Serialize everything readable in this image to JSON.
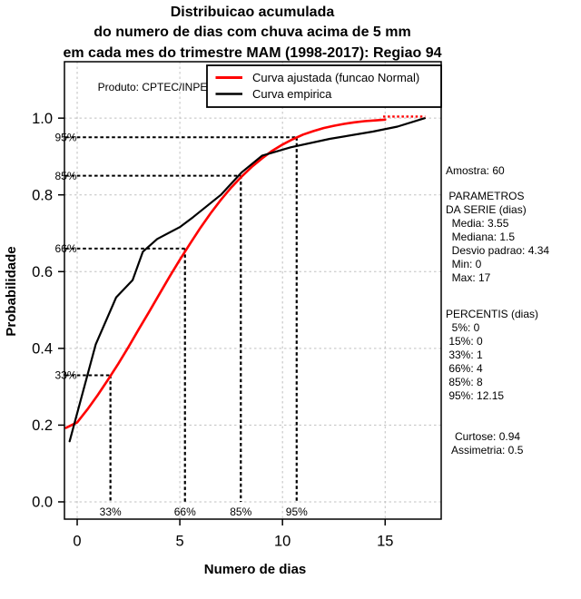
{
  "title": {
    "line1": "Distribuicao acumulada",
    "line2": "do numero de dias com chuva acima de 5 mm",
    "line3": "em cada mes do trimestre MAM (1998-2017): Regiao 94"
  },
  "watermark": "Produto: CPTEC/INPE",
  "axes": {
    "x_label": "Numero de dias",
    "y_label": "Probabilidade"
  },
  "legend": {
    "items": [
      {
        "label": "Curva ajustada (funcao Normal)",
        "color": "#ff0000"
      },
      {
        "label": "Curva empirica",
        "color": "#000000"
      }
    ]
  },
  "stats_panel": {
    "blocks": [
      {
        "lines": [
          "Amostra: 60"
        ]
      },
      {
        "lines": [
          " PARAMETROS",
          "DA SERIE (dias)",
          "  Media: 3.55",
          "  Mediana: 1.5",
          "  Desvio padrao: 4.34",
          "  Min: 0",
          "  Max: 17"
        ]
      },
      {
        "lines": [
          "PERCENTIS (dias)",
          "  5%: 0",
          " 15%: 0",
          " 33%: 1",
          " 66%: 4",
          " 85%: 8",
          " 95%: 12.15"
        ]
      },
      {
        "lines": [
          "   Curtose: 0.94",
          "  Assimetria: 0.5"
        ]
      }
    ]
  },
  "chart_data": {
    "type": "line",
    "title": "Distribuicao acumulada do numero de dias com chuva acima de 5 mm em cada mes do trimestre MAM (1998-2017): Regiao 94",
    "xlabel": "Numero de dias",
    "ylabel": "Probabilidade",
    "x_range": [
      -0.62,
      17.73
    ],
    "y_range": [
      -0.045,
      1.147
    ],
    "x_ticks": {
      "values": [
        0,
        5,
        10,
        15
      ],
      "labels": [
        "0",
        "5",
        "10",
        "15"
      ]
    },
    "y_ticks": {
      "values": [
        0,
        0.2,
        0.4,
        0.6,
        0.8,
        1.0
      ],
      "labels": [
        "0.0",
        "0.2",
        "0.4",
        "0.6",
        "0.8",
        "1.0"
      ]
    },
    "grid": true,
    "legend_position": "top",
    "sample_size": 60,
    "normal_params": {
      "mean": 3.55,
      "sd": 4.34
    },
    "series": [
      {
        "name": "Curva ajustada (funcao Normal)",
        "color": "#ff0000",
        "width": 2.6,
        "points": [
          [
            -0.55,
            0.193
          ],
          [
            0,
            0.207
          ],
          [
            0.5,
            0.241
          ],
          [
            1,
            0.278
          ],
          [
            1.5,
            0.318
          ],
          [
            2,
            0.36
          ],
          [
            2.5,
            0.404
          ],
          [
            3,
            0.45
          ],
          [
            3.5,
            0.495
          ],
          [
            4,
            0.541
          ],
          [
            4.5,
            0.587
          ],
          [
            5,
            0.631
          ],
          [
            5.5,
            0.673
          ],
          [
            6,
            0.714
          ],
          [
            6.5,
            0.752
          ],
          [
            7,
            0.787
          ],
          [
            7.5,
            0.819
          ],
          [
            8,
            0.847
          ],
          [
            8.5,
            0.873
          ],
          [
            9,
            0.895
          ],
          [
            9.5,
            0.915
          ],
          [
            10,
            0.931
          ],
          [
            10.5,
            0.945
          ],
          [
            11,
            0.957
          ],
          [
            11.5,
            0.966
          ],
          [
            12,
            0.974
          ],
          [
            12.5,
            0.98
          ],
          [
            13,
            0.985
          ],
          [
            13.5,
            0.989
          ],
          [
            14,
            0.992
          ],
          [
            14.5,
            0.994
          ],
          [
            15,
            0.996
          ]
        ]
      },
      {
        "name": "Curva empirica",
        "color": "#000000",
        "width": 2.2,
        "points": [
          [
            -0.37,
            0.158
          ],
          [
            0.9,
            0.41
          ],
          [
            1.9,
            0.533
          ],
          [
            2.7,
            0.578
          ],
          [
            3.2,
            0.652
          ],
          [
            3.9,
            0.685
          ],
          [
            5.0,
            0.716
          ],
          [
            5.65,
            0.742
          ],
          [
            7.0,
            0.8
          ],
          [
            8.0,
            0.858
          ],
          [
            9.0,
            0.902
          ],
          [
            10.4,
            0.924
          ],
          [
            12.3,
            0.946
          ],
          [
            14.4,
            0.965
          ],
          [
            15.6,
            0.978
          ],
          [
            16.93,
            1.0
          ]
        ]
      }
    ],
    "fitted_tail_dotted": {
      "color": "#ff0000",
      "from": [
        14.9,
        1.004
      ],
      "to": [
        16.95,
        1.004
      ]
    },
    "guides": [
      {
        "label": "33%",
        "p": 0.33,
        "x": 1.62
      },
      {
        "label": "66%",
        "p": 0.66,
        "x": 5.25
      },
      {
        "label": "85%",
        "p": 0.85,
        "x": 7.97
      },
      {
        "label": "95%",
        "p": 0.95,
        "x": 10.69
      }
    ],
    "colors": {
      "grid": "#c0c0c0",
      "guide": "#000000",
      "axis": "#000000"
    }
  }
}
